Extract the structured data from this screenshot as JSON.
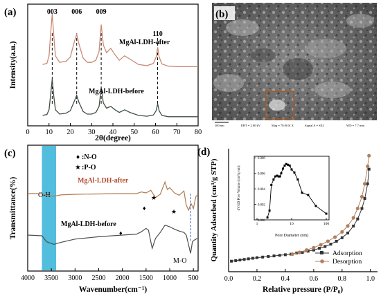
{
  "chart_data": [
    {
      "type": "line",
      "panel_label": "(a)",
      "xlabel": "2θ(degree)",
      "ylabel": "Intensity(a.u.)",
      "xlim": [
        0,
        80
      ],
      "x_ticks": [
        "0",
        "10",
        "20",
        "30",
        "40",
        "50",
        "60",
        "70",
        "80"
      ],
      "peak_labels": [
        {
          "text": "003",
          "x": 11.5
        },
        {
          "text": "006",
          "x": 23
        },
        {
          "text": "009",
          "x": 34.5
        },
        {
          "text": "110",
          "x": 61
        }
      ],
      "series": [
        {
          "name": "MgAl-LDH-after",
          "color": "#c98a74",
          "x": [
            7,
            9,
            10,
            10.8,
            11.5,
            12.2,
            13,
            15,
            18,
            20,
            22,
            23,
            24,
            26,
            28,
            30,
            32,
            33.5,
            34.5,
            35.5,
            37,
            39,
            41,
            43,
            45.5,
            48,
            52,
            56,
            59,
            60.3,
            61,
            61.7,
            63,
            66,
            70,
            75,
            80
          ],
          "y": [
            0.06,
            0.08,
            0.22,
            0.65,
            1.0,
            0.62,
            0.22,
            0.1,
            0.12,
            0.2,
            0.5,
            0.62,
            0.45,
            0.18,
            0.1,
            0.1,
            0.14,
            0.3,
            0.8,
            0.42,
            0.28,
            0.36,
            0.24,
            0.14,
            0.22,
            0.16,
            0.06,
            0.04,
            0.08,
            0.2,
            0.38,
            0.2,
            0.07,
            0.03,
            0.02,
            0.02,
            0.02
          ]
        },
        {
          "name": "MgAl-LDH-before",
          "color": "#3f4f44",
          "x": [
            7,
            9,
            10,
            10.8,
            11.5,
            12.2,
            13,
            15,
            18,
            20,
            22,
            23,
            24,
            26,
            28,
            30,
            32,
            33.5,
            34.5,
            35.5,
            37,
            39,
            41,
            43,
            45.5,
            48,
            52,
            56,
            59,
            60.3,
            61,
            61.7,
            63,
            66,
            70,
            75,
            80
          ],
          "y": [
            0.05,
            0.07,
            0.18,
            0.55,
            0.9,
            0.52,
            0.18,
            0.08,
            0.1,
            0.16,
            0.4,
            0.52,
            0.36,
            0.14,
            0.08,
            0.08,
            0.12,
            0.26,
            0.68,
            0.34,
            0.22,
            0.26,
            0.18,
            0.12,
            0.18,
            0.12,
            0.05,
            0.03,
            0.06,
            0.16,
            0.32,
            0.16,
            0.05,
            0.02,
            0.02,
            0.02,
            0.02
          ]
        }
      ]
    },
    {
      "type": "line",
      "panel_label": "(c)",
      "xlabel": "Wavenumber(cm⁻¹)",
      "ylabel": "Transmittance(%)",
      "xlim": [
        4000,
        400
      ],
      "x_ticks": [
        "4000",
        "3500",
        "3000",
        "2500",
        "2000",
        "1500",
        "1000",
        "500"
      ],
      "legend": [
        {
          "symbol": "♦",
          "text": ":N-O"
        },
        {
          "symbol": "★",
          "text": ":P-O"
        }
      ],
      "band_labels": [
        "O-H",
        "M-O"
      ],
      "series": [
        {
          "name": "MgAl-LDH-after",
          "color": "#b07a4e",
          "x": [
            4000,
            3700,
            3600,
            3450,
            3300,
            3000,
            2500,
            2000,
            1700,
            1600,
            1500,
            1400,
            1300,
            1200,
            1100,
            1050,
            1000,
            900,
            800,
            700,
            650,
            600,
            550,
            500,
            450,
            420
          ],
          "y": [
            0.0,
            0.0,
            -0.05,
            -0.08,
            -0.04,
            -0.02,
            -0.01,
            0.0,
            0.0,
            0.05,
            0.02,
            0.1,
            -0.12,
            -0.02,
            0.35,
            0.12,
            0.18,
            0.02,
            -0.05,
            0.08,
            -0.35,
            -0.5,
            -0.3,
            -0.45,
            -0.1,
            -0.05
          ]
        },
        {
          "name": "MgAl-LDH-before",
          "color": "#4d4d4d",
          "x": [
            4000,
            3700,
            3600,
            3450,
            3300,
            3000,
            2500,
            2000,
            1700,
            1600,
            1500,
            1450,
            1400,
            1370,
            1300,
            1200,
            1100,
            1000,
            900,
            800,
            700,
            650,
            600,
            560,
            520,
            480,
            420
          ],
          "y": [
            0.0,
            -0.02,
            -0.2,
            -0.28,
            -0.22,
            -0.12,
            -0.05,
            0.0,
            0.03,
            0.1,
            0.2,
            0.15,
            -0.2,
            -0.4,
            -0.1,
            0.08,
            0.3,
            0.25,
            0.18,
            0.12,
            0.08,
            0.0,
            -0.3,
            -0.55,
            -0.2,
            -0.15,
            -0.1
          ]
        }
      ]
    },
    {
      "type": "line",
      "panel_label": "(d)",
      "xlabel": "Relative pressure (P/P₀)",
      "ylabel": "Quantity Adsorbed (cm³/g STP)",
      "xlim": [
        0,
        1.05
      ],
      "x_ticks": [
        "0.0",
        "0.2",
        "0.4",
        "0.6",
        "0.8",
        "1.0"
      ],
      "legend_placement": "bottom-right",
      "series": [
        {
          "name": "Adsorption",
          "color": "#333333",
          "x": [
            0.02,
            0.05,
            0.08,
            0.11,
            0.14,
            0.17,
            0.2,
            0.24,
            0.28,
            0.32,
            0.36,
            0.4,
            0.44,
            0.48,
            0.52,
            0.56,
            0.6,
            0.64,
            0.68,
            0.72,
            0.76,
            0.8,
            0.84,
            0.88,
            0.91,
            0.94,
            0.96,
            0.98,
            0.99
          ],
          "y": [
            18,
            19,
            20,
            21,
            22,
            23,
            24,
            25,
            26,
            27,
            28,
            29,
            30,
            32,
            33,
            35,
            37,
            40,
            43,
            47,
            52,
            58,
            66,
            78,
            90,
            108,
            125,
            150,
            175
          ]
        },
        {
          "name": "Desorption",
          "color": "#b08060",
          "x": [
            0.45,
            0.5,
            0.55,
            0.6,
            0.65,
            0.7,
            0.75,
            0.8,
            0.84,
            0.88,
            0.91,
            0.94,
            0.96,
            0.98,
            0.99
          ],
          "y": [
            30,
            33,
            37,
            41,
            46,
            52,
            59,
            68,
            78,
            92,
            108,
            128,
            150,
            180,
            198
          ]
        }
      ],
      "inset": {
        "type": "line",
        "xlabel": "Pore Diameter (nm)",
        "ylabel": "dV/dD Pore Volume (cm³/g·nm)",
        "x_scale": "log",
        "x_ticks": [
          "1",
          "10",
          "100"
        ],
        "y_ticks": [
          "0.000",
          "0.002",
          "0.004",
          "0.006",
          "0.008"
        ],
        "ylim": [
          0.0,
          0.0082
        ],
        "x": [
          2.0,
          2.3,
          2.6,
          3.0,
          3.4,
          3.8,
          4.2,
          4.6,
          5.0,
          5.6,
          6.3,
          7.0,
          7.8,
          8.8,
          10,
          12,
          15,
          20,
          30,
          50,
          100
        ],
        "y": [
          0.0003,
          0.0012,
          0.0045,
          0.0052,
          0.0056,
          0.0057,
          0.0056,
          0.0056,
          0.006,
          0.0066,
          0.007,
          0.0072,
          0.0071,
          0.007,
          0.0065,
          0.0061,
          0.0052,
          0.0035,
          0.0032,
          0.0018,
          0.0008
        ]
      }
    }
  ],
  "sem_panel": {
    "panel_label": "(b)",
    "scale_text": "100 nm",
    "info_items": [
      "EHT = 2.00 kV",
      "Mag = 70.00 K X",
      "Signal A = SE2",
      "WD = 7.7 mm"
    ]
  }
}
